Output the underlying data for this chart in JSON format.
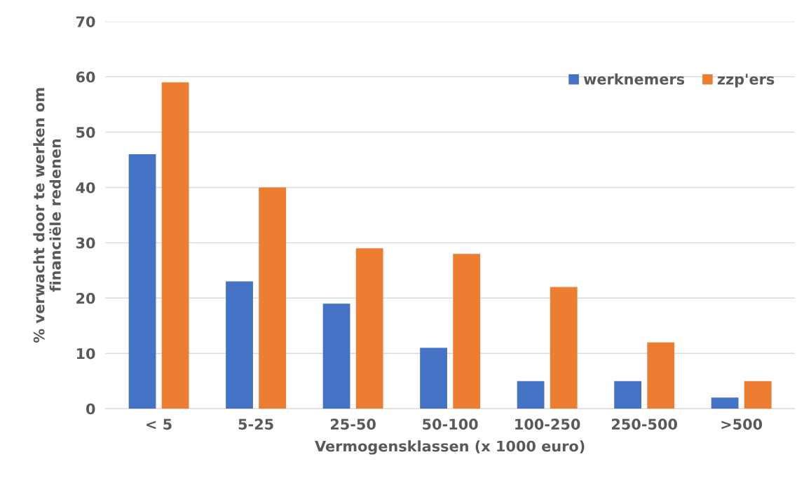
{
  "chart_data": {
    "type": "bar",
    "xlabel": "Vermogensklassen (x 1000 euro)",
    "ylabel": "% verwacht door te werken om\nfinanciële redenen",
    "categories": [
      "< 5",
      "5-25",
      "25-50",
      "50-100",
      "100-250",
      "250-500",
      ">500"
    ],
    "series": [
      {
        "name": "werknemers",
        "color": "#4472c4",
        "values": [
          46,
          23,
          19,
          11,
          5,
          5,
          2
        ]
      },
      {
        "name": "zzp'ers",
        "color": "#ed7d31",
        "values": [
          59,
          40,
          29,
          28,
          22,
          12,
          5
        ]
      }
    ],
    "ylim": [
      0,
      70
    ],
    "yticks": [
      0,
      10,
      20,
      30,
      40,
      50,
      60,
      70
    ],
    "grid": "y",
    "legend": "top right"
  }
}
